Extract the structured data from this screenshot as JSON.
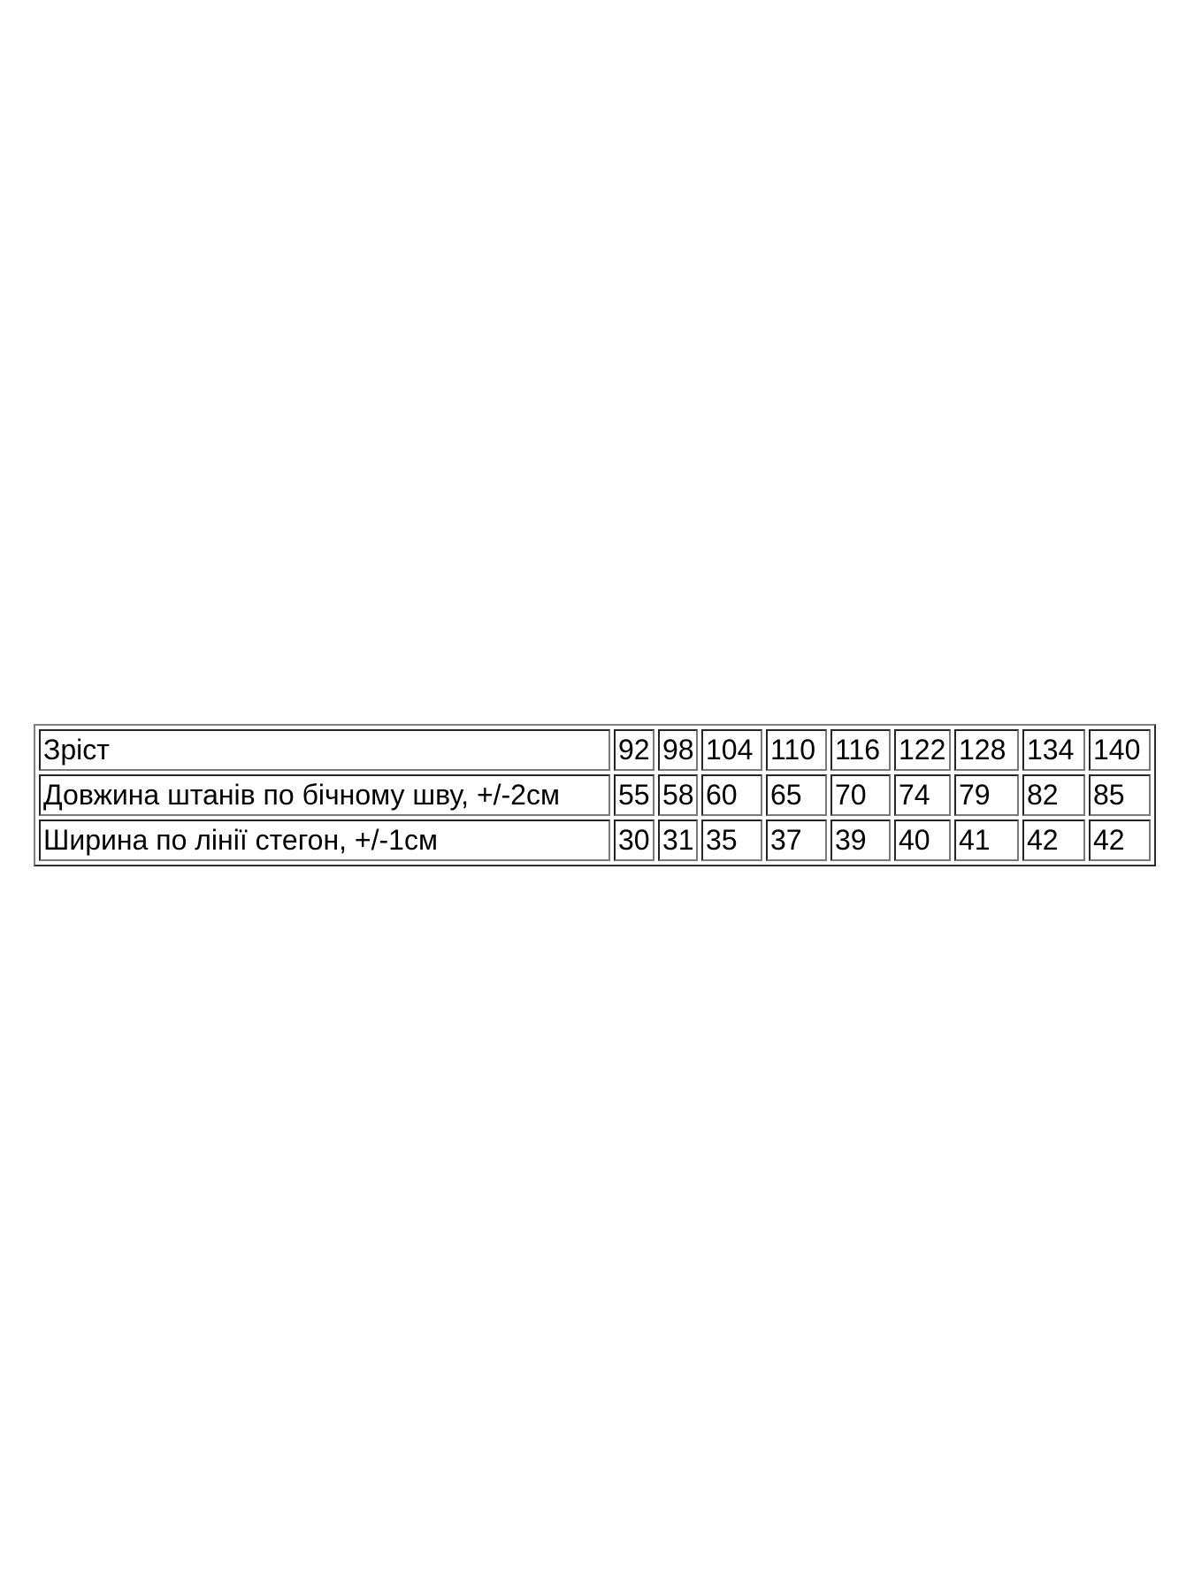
{
  "colors": {
    "background": "#ffffff",
    "table_outer_border": "#808080",
    "cell_border": "#7a7a7a",
    "text": "#000000"
  },
  "chart_data": {
    "type": "table",
    "description_visible_text_only": "Size chart table, 3 rows, label column + 9 size columns",
    "rows": [
      {
        "label": "Зріст",
        "values": [
          "92",
          "98",
          "104",
          "110",
          "116",
          "122",
          "128",
          "134",
          "140"
        ]
      },
      {
        "label": "Довжина штанів по бічному шву, +/-2см",
        "values": [
          "55",
          "58",
          "60",
          "65",
          "70",
          "74",
          "79",
          "82",
          "85"
        ]
      },
      {
        "label": "Ширина по лінії стегон, +/-1см",
        "values": [
          "30",
          "31",
          "35",
          "37",
          "39",
          "40",
          "41",
          "42",
          "42"
        ]
      }
    ]
  }
}
